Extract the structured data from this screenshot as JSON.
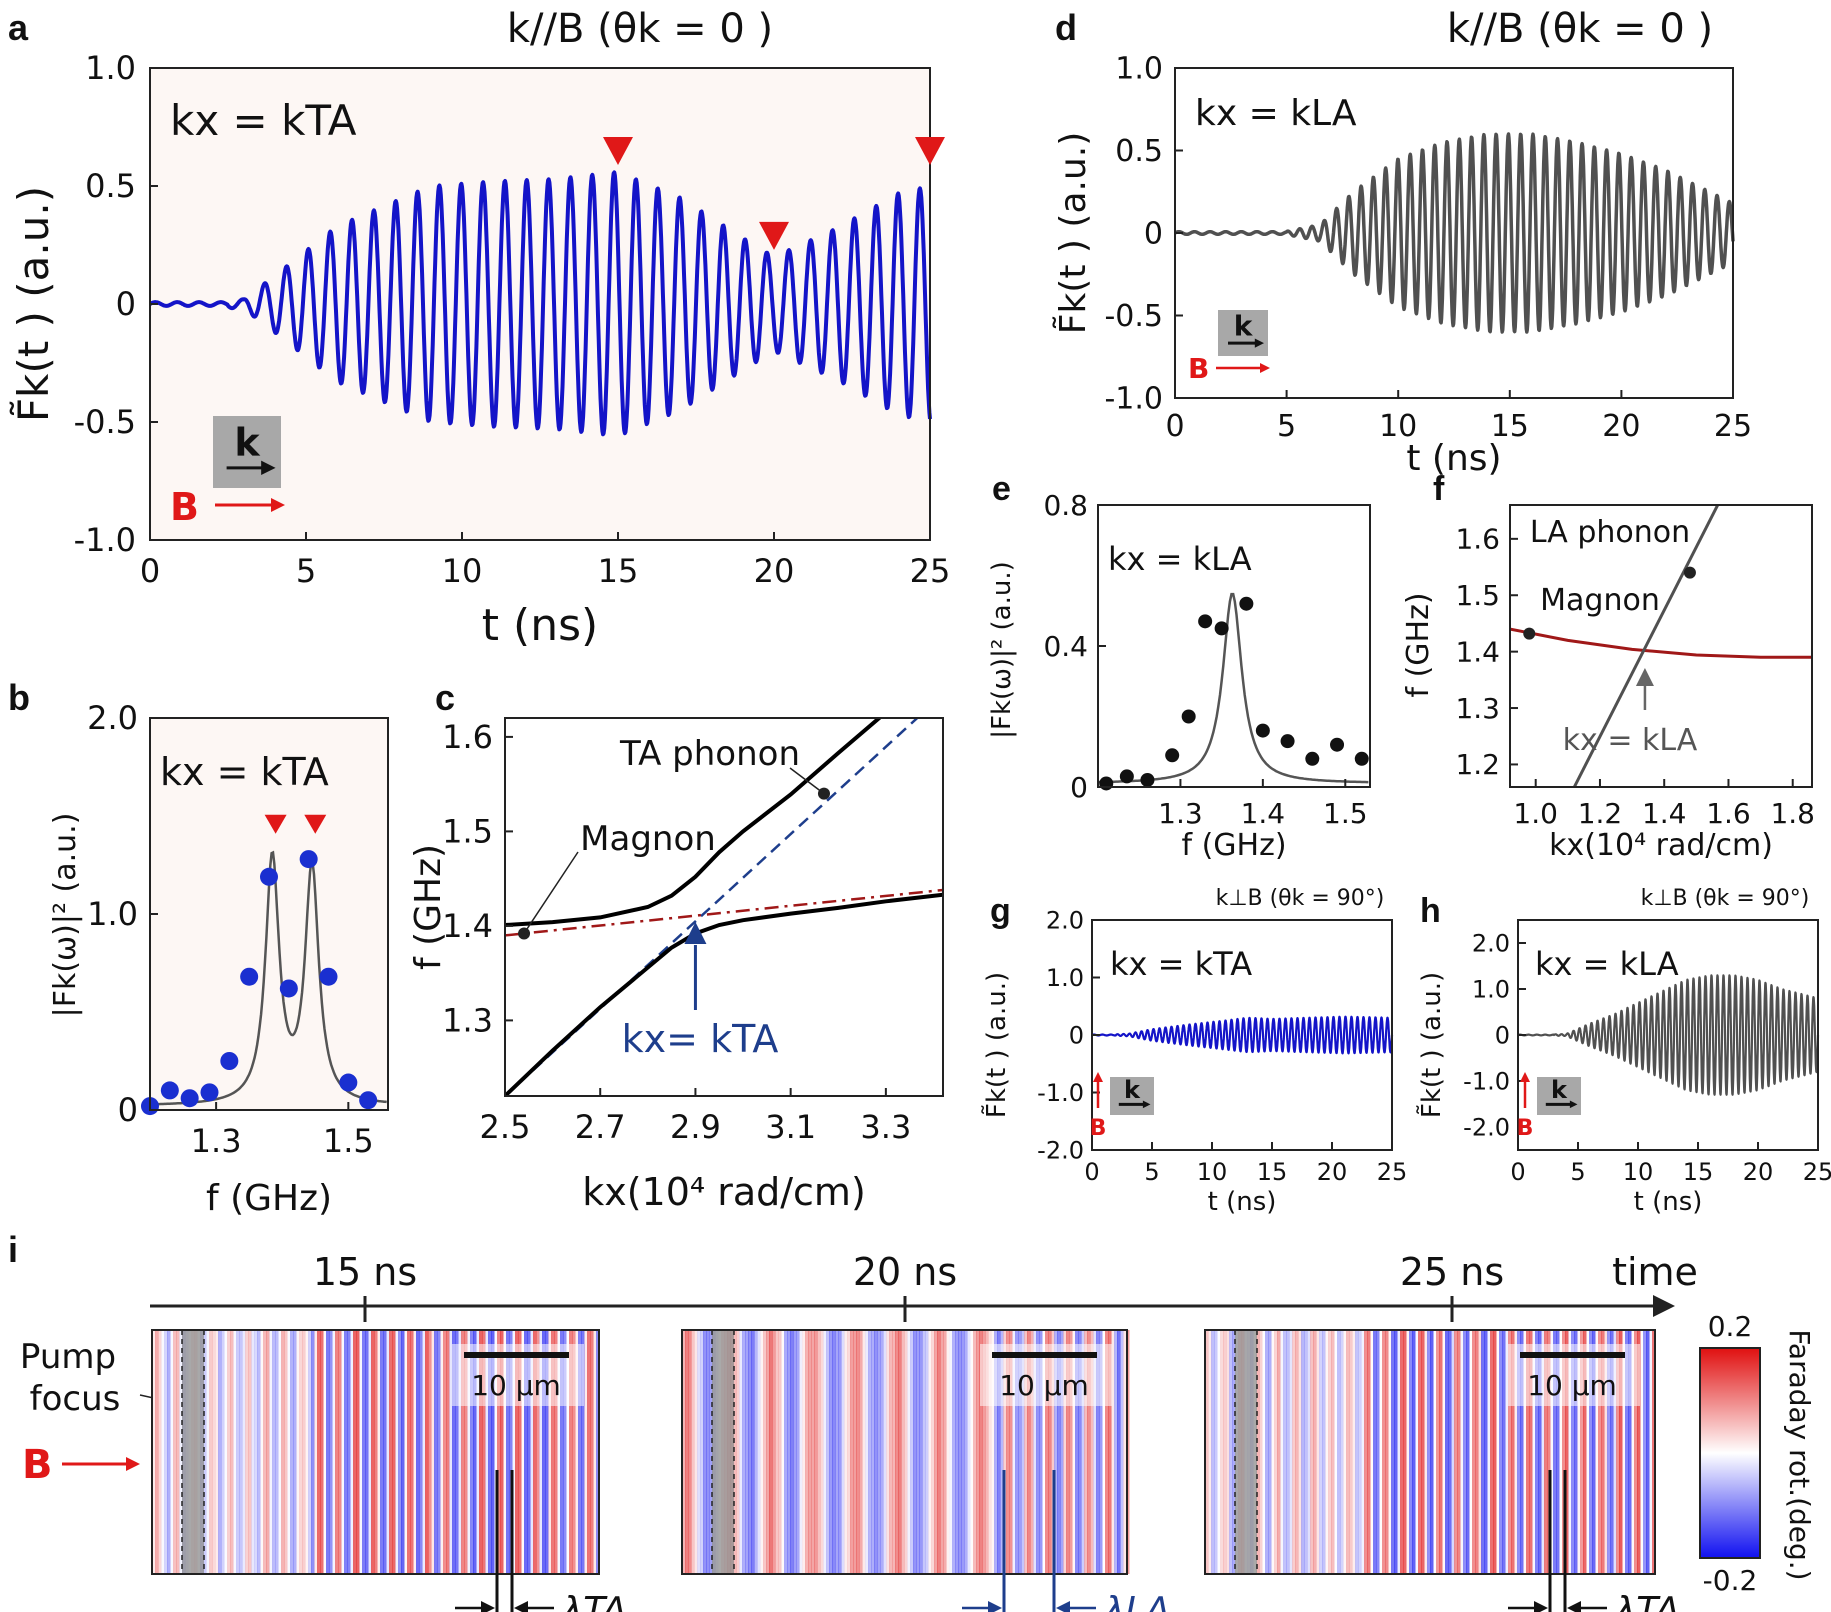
{
  "colors": {
    "blue": "#1414c8",
    "gray": "#505050",
    "red": "#e01818",
    "darkred": "#a01818",
    "navy": "#1e3e8c",
    "map_pos": "#e01010",
    "map_neg": "#1010f0"
  },
  "chart_data": [
    {
      "panel": "a",
      "type": "line",
      "title": "k//B (θk = 0 )",
      "annotation": "kx = kTA",
      "xlabel": "t (ns)",
      "ylabel": "F̃k(t ) (a.u.)",
      "xlim": [
        0,
        25
      ],
      "ylim": [
        -1.0,
        1.0
      ],
      "xticks": [
        "0",
        "5",
        "10",
        "15",
        "20",
        "25"
      ],
      "yticks": [
        "1.0",
        "0.5",
        "0",
        "-0.5",
        "-1.0"
      ],
      "series": [
        {
          "color": "blue",
          "onset_ns": 3.5,
          "period_ns": 0.7,
          "envelope": {
            "t": [
              0,
              3,
              4,
              6,
              9,
              11,
              13,
              15,
              17,
              19,
              20,
              22,
              24,
              25
            ],
            "amp": [
              0,
              0.02,
              0.12,
              0.33,
              0.5,
              0.52,
              0.53,
              0.56,
              0.45,
              0.28,
              0.2,
              0.32,
              0.47,
              0.5
            ]
          }
        }
      ],
      "markers": {
        "type": "triangle-down",
        "color": "red",
        "t_ns": [
          15,
          20,
          25
        ],
        "y": [
          0.64,
          0.28,
          0.64
        ]
      },
      "inset": {
        "k": "k",
        "B": "B"
      }
    },
    {
      "panel": "d",
      "type": "line",
      "title": "k//B (θk = 0 )",
      "annotation": "kx = kLA",
      "xlabel": "t (ns)",
      "ylabel": "F̃k(t ) (a.u.)",
      "xlim": [
        0,
        25
      ],
      "ylim": [
        -1.0,
        1.0
      ],
      "xticks": [
        "0",
        "5",
        "10",
        "15",
        "20",
        "25"
      ],
      "yticks": [
        "1.0",
        "0.5",
        "0",
        "-0.5",
        "-1.0"
      ],
      "series": [
        {
          "color": "gray",
          "onset_ns": 6,
          "period_ns": 0.55,
          "envelope": {
            "t": [
              0,
              5,
              6.5,
              8,
              10,
              12,
              14,
              16,
              18,
              20,
              22,
              25
            ],
            "amp": [
              0,
              0.01,
              0.05,
              0.25,
              0.45,
              0.55,
              0.6,
              0.6,
              0.55,
              0.48,
              0.38,
              0.18
            ]
          }
        }
      ],
      "inset": {
        "k": "k",
        "B": "B"
      }
    },
    {
      "panel": "b",
      "type": "scatter",
      "annotation": "kx = kTA",
      "xlabel": "f (GHz)",
      "ylabel": "|Fk(ω)|² (a.u.)",
      "xlim": [
        1.2,
        1.56
      ],
      "ylim": [
        0,
        2.0
      ],
      "xticks": [
        "1.3",
        "1.5"
      ],
      "yticks": [
        "2.0",
        "1.0",
        "0"
      ],
      "points": {
        "x": [
          1.2,
          1.23,
          1.26,
          1.29,
          1.32,
          1.35,
          1.38,
          1.41,
          1.44,
          1.47,
          1.5,
          1.53
        ],
        "y": [
          0.02,
          0.1,
          0.06,
          0.09,
          0.25,
          0.68,
          1.19,
          0.62,
          1.28,
          0.68,
          0.14,
          0.05
        ]
      },
      "fit": {
        "type": "double-lorentzian",
        "centers": [
          1.385,
          1.445
        ],
        "width": 0.025,
        "heights": [
          1.25,
          1.2
        ]
      },
      "markers": {
        "type": "triangle-down",
        "color": "red",
        "x": [
          1.39,
          1.45
        ],
        "y": 1.45
      }
    },
    {
      "panel": "c",
      "type": "line",
      "annotations": [
        "TA phonon",
        "Magnon",
        "kx= kTA"
      ],
      "xlabel": "kx(10⁴ rad/cm)",
      "ylabel": "f (GHz)",
      "xlim": [
        2.5,
        3.42
      ],
      "ylim": [
        1.22,
        1.62
      ],
      "xticks": [
        "2.5",
        "2.7",
        "2.9",
        "3.1",
        "3.3"
      ],
      "yticks": [
        "1.6",
        "1.5",
        "1.4",
        "1.3"
      ],
      "series": [
        {
          "name": "",
          "style": "dash",
          "color": "navy",
          "x": [
            2.5,
            3.42
          ],
          "y": [
            1.22,
            1.645
          ]
        },
        {
          "name": "",
          "style": "dashdot",
          "color": "darkred",
          "x": [
            2.5,
            3.42
          ],
          "y": [
            1.39,
            1.438
          ]
        },
        {
          "name": "",
          "style": "solid",
          "color": "black",
          "x": [
            2.5,
            2.6,
            2.7,
            2.8,
            2.85,
            2.9,
            2.95,
            3.0,
            3.1,
            3.2,
            3.3,
            3.42
          ],
          "y": [
            1.401,
            1.404,
            1.409,
            1.42,
            1.432,
            1.452,
            1.478,
            1.5,
            1.539,
            1.583,
            1.626,
            1.68
          ]
        },
        {
          "name": "",
          "style": "solid",
          "color": "black",
          "x": [
            2.5,
            2.6,
            2.7,
            2.8,
            2.85,
            2.9,
            2.95,
            3.0,
            3.1,
            3.2,
            3.3,
            3.42
          ],
          "y": [
            1.22,
            1.268,
            1.314,
            1.356,
            1.377,
            1.392,
            1.401,
            1.406,
            1.413,
            1.419,
            1.426,
            1.433
          ]
        }
      ],
      "points": {
        "x": [
          2.54,
          3.17
        ],
        "y": [
          1.392,
          1.54
        ]
      },
      "arrow_x": 2.9
    },
    {
      "panel": "e",
      "type": "scatter",
      "annotation": "kx = kLA",
      "xlabel": "f (GHz)",
      "ylabel": "|Fk(ω)|² (a.u.)",
      "xlim": [
        1.2,
        1.53
      ],
      "ylim": [
        0,
        0.8
      ],
      "xticks": [
        "1.3",
        "1.4",
        "1.5"
      ],
      "yticks": [
        "0.8",
        "0.4",
        "0"
      ],
      "points": {
        "x": [
          1.21,
          1.235,
          1.26,
          1.29,
          1.31,
          1.33,
          1.35,
          1.38,
          1.4,
          1.43,
          1.46,
          1.49,
          1.52
        ],
        "y": [
          0.01,
          0.03,
          0.02,
          0.09,
          0.2,
          0.47,
          0.45,
          0.52,
          0.16,
          0.13,
          0.08,
          0.12,
          0.08
        ]
      },
      "fit": {
        "type": "lorentzian",
        "center": 1.363,
        "width": 0.028,
        "height": 0.54,
        "baseline": 0.01
      }
    },
    {
      "panel": "f",
      "type": "line",
      "annotations": [
        "LA phonon",
        "Magnon",
        "kx = kLA"
      ],
      "xlabel": "kx(10⁴ rad/cm)",
      "ylabel": "f (GHz)",
      "xlim": [
        0.92,
        1.86
      ],
      "ylim": [
        1.16,
        1.66
      ],
      "xticks": [
        "1.0",
        "1.2",
        "1.4",
        "1.6",
        "1.8"
      ],
      "yticks": [
        "1.6",
        "1.5",
        "1.4",
        "1.3",
        "1.2"
      ],
      "series": [
        {
          "name": "",
          "color": "darkred",
          "x": [
            0.92,
            1.1,
            1.3,
            1.5,
            1.7,
            1.86
          ],
          "y": [
            1.44,
            1.42,
            1.404,
            1.394,
            1.39,
            1.39
          ]
        },
        {
          "name": "",
          "color": "gray",
          "x": [
            1.12,
            1.62
          ],
          "y": [
            1.16,
            1.72
          ]
        }
      ],
      "points": {
        "x": [
          0.98,
          1.48
        ],
        "y": [
          1.432,
          1.54
        ]
      },
      "arrow_x": 1.34
    },
    {
      "panel": "g",
      "type": "line",
      "title": "k⊥B (θk = 90°)",
      "annotation": "kx = kTA",
      "xlabel": "t (ns)",
      "ylabel": "F̃k(t ) (a.u.)",
      "xlim": [
        0,
        25
      ],
      "ylim": [
        -2.0,
        2.0
      ],
      "xticks": [
        "0",
        "5",
        "10",
        "15",
        "20",
        "25"
      ],
      "yticks": [
        "2.0",
        "1.0",
        "0",
        "-1.0",
        "-2.0"
      ],
      "series": [
        {
          "color": "blue",
          "onset_ns": 3,
          "period_ns": 0.5,
          "envelope": {
            "t": [
              0,
              3,
              5,
              8,
              11,
              13,
              15,
              18,
              21,
              25
            ],
            "amp": [
              0,
              0.02,
              0.1,
              0.18,
              0.25,
              0.3,
              0.28,
              0.3,
              0.32,
              0.3
            ]
          }
        }
      ],
      "inset": {
        "k": "k",
        "B": "B"
      }
    },
    {
      "panel": "h",
      "type": "line",
      "title": "k⊥B (θk = 90°)",
      "annotation": "kx = kLA",
      "xlabel": "t (ns)",
      "ylabel": "F̃k(t ) (a.u.)",
      "xlim": [
        0,
        25
      ],
      "ylim": [
        -2.5,
        2.5
      ],
      "xticks": [
        "0",
        "5",
        "10",
        "15",
        "20",
        "25"
      ],
      "yticks": [
        "2.0",
        "1.0",
        "0",
        "-1.0",
        "-2.0"
      ],
      "series": [
        {
          "color": "gray",
          "onset_ns": 4,
          "period_ns": 0.5,
          "envelope": {
            "t": [
              0,
              4,
              6,
              8,
              10,
              12,
              14,
              16,
              18,
              20,
              22,
              25
            ],
            "amp": [
              0,
              0.02,
              0.25,
              0.45,
              0.7,
              0.95,
              1.2,
              1.3,
              1.3,
              1.2,
              1.0,
              0.8
            ]
          }
        }
      ],
      "inset": {
        "k": "k",
        "B": "B"
      }
    },
    {
      "panel": "i",
      "type": "heatmap",
      "time_labels": [
        "15 ns",
        "20 ns",
        "25 ns"
      ],
      "axis_label": "time",
      "maps": [
        {
          "time": "15 ns",
          "scalebar": "10 µm",
          "lambda": "λTA",
          "stripe_period_um": 1.6
        },
        {
          "time": "20 ns",
          "scalebar": "10 µm",
          "lambda": "λLA",
          "stripe_period_um": 4.2
        },
        {
          "time": "25 ns",
          "scalebar": "10 µm",
          "lambda": "λTA",
          "stripe_period_um": 1.6
        }
      ],
      "pump_label": "Pump focus",
      "B_label": "B",
      "colorbar": {
        "max": "0.2",
        "min": "-0.2",
        "label": "Faraday rot.(deg.)"
      }
    }
  ]
}
